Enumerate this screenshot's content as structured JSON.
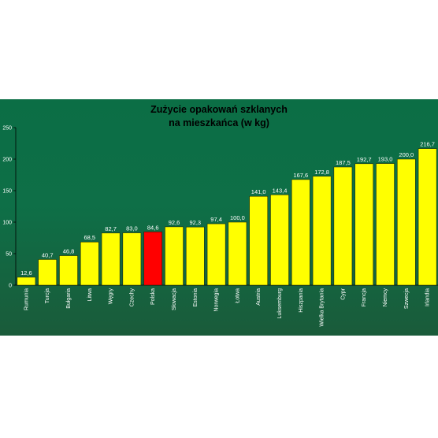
{
  "chart_data": {
    "type": "bar",
    "title_lines": [
      "Zużycie opakowań szklanych",
      "na mieszkańca (w kg)"
    ],
    "ylim": [
      0,
      250
    ],
    "yticks": [
      0,
      50,
      100,
      150,
      200,
      250
    ],
    "grid": false,
    "colors": {
      "default": "#ffff00",
      "highlight": "#ff0000"
    },
    "highlight_category": "Polska",
    "categories": [
      "Rumunia",
      "Turcja",
      "Bułgaria",
      "Litwa",
      "Węgry",
      "Czechy",
      "Polska",
      "Słowacja",
      "Estonia",
      "Norwegia",
      "Łotwa",
      "Austria",
      "Luksemburg",
      "Hiszpania",
      "Wielka Brytania",
      "Cypr",
      "Francja",
      "Niemcy",
      "Szwecja",
      "Irlandia"
    ],
    "values": [
      12.6,
      40.7,
      46.8,
      68.5,
      82.7,
      83.0,
      84.6,
      92.6,
      92.3,
      97.4,
      100.0,
      141.0,
      143.4,
      167.6,
      172.8,
      187.5,
      192.7,
      193.0,
      200.0,
      216.7
    ],
    "value_labels": [
      "12,6",
      "40,7",
      "46,8",
      "68,5",
      "82,7",
      "83,0",
      "84,6",
      "92,6",
      "92,3",
      "97,4",
      "100,0",
      "141,0",
      "143,4",
      "167,6",
      "172,8",
      "187,5",
      "192,7",
      "193,0",
      "200,0",
      "216,7"
    ]
  }
}
